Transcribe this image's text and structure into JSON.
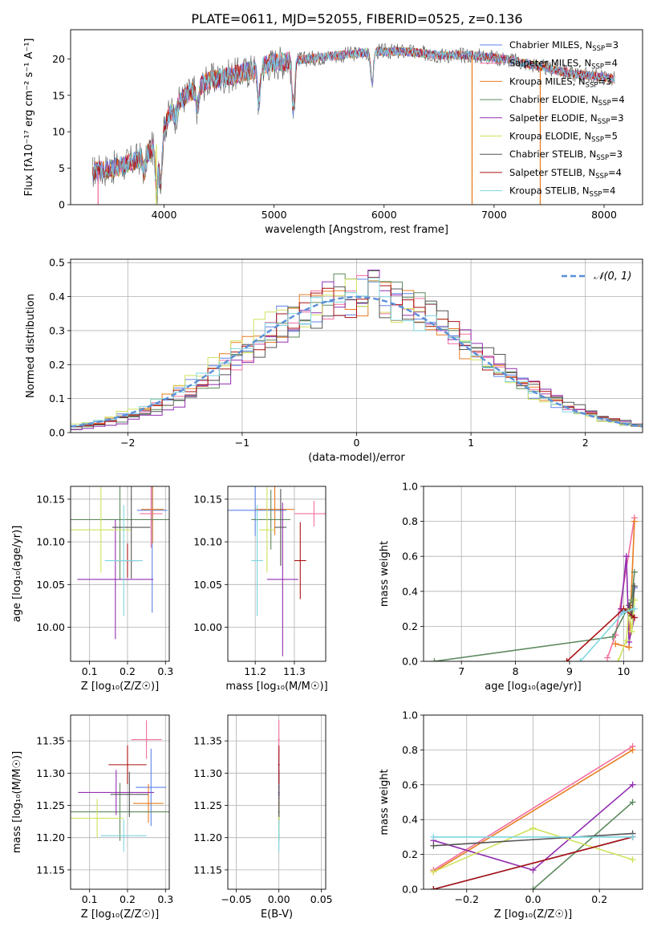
{
  "figure_title": "PLATE=0611, MJD=52055, FIBERID=0525, z=0.136",
  "colors": {
    "Chabrier MILES": "#5d82ea",
    "Salpeter MILES": "#f46fa0",
    "Kroupa MILES": "#e87d22",
    "Chabrier ELODIE": "#5d8a5e",
    "Salpeter ELODIE": "#922fb0",
    "Kroupa ELODIE": "#cfe25d",
    "Chabrier STELIB": "#555555",
    "Salpeter STELIB": "#aa1111",
    "Kroupa STELIB": "#7fd6e0",
    "normal_dashed": "#5b8fd8",
    "grid": "#b0b0b0"
  },
  "chart_data": [
    {
      "id": "spectrum",
      "type": "line",
      "title": "PLATE=0611, MJD=52055, FIBERID=0525, z=0.136",
      "xlabel": "wavelength [Angstrom, rest frame]",
      "ylabel": "Flux [fλ10⁻¹⁷ erg cm⁻² s⁻¹ A⁻¹]",
      "xlim": [
        3150,
        8350
      ],
      "ylim": [
        0,
        24
      ],
      "xticks": [
        4000,
        5000,
        6000,
        7000,
        8000
      ],
      "yticks": [
        0,
        5,
        10,
        15,
        20
      ],
      "grid": false,
      "legend_position": "top-right",
      "legend": [
        {
          "library": "Chabrier MILES",
          "label": "Chabrier MILES, N",
          "sub": "SSP",
          "suffix": "=3"
        },
        {
          "library": "Salpeter MILES",
          "label": "Salpeter MILES, N",
          "sub": "SSP",
          "suffix": "=4"
        },
        {
          "library": "Kroupa MILES",
          "label": "Kroupa MILES, N",
          "sub": "SSP",
          "suffix": "=3"
        },
        {
          "library": "Chabrier ELODIE",
          "label": "Chabrier ELODIE, N",
          "sub": "SSP",
          "suffix": "=4"
        },
        {
          "library": "Salpeter ELODIE",
          "label": "Salpeter ELODIE, N",
          "sub": "SSP",
          "suffix": "=3"
        },
        {
          "library": "Kroupa ELODIE",
          "label": "Kroupa ELODIE, N",
          "sub": "SSP",
          "suffix": "=5"
        },
        {
          "library": "Chabrier STELIB",
          "label": "Chabrier STELIB, N",
          "sub": "SSP",
          "suffix": "=3"
        },
        {
          "library": "Salpeter STELIB",
          "label": "Salpeter STELIB, N",
          "sub": "SSP",
          "suffix": "=4"
        },
        {
          "library": "Kroupa STELIB",
          "label": "Kroupa STELIB, N",
          "sub": "SSP",
          "suffix": "=4"
        }
      ],
      "continuum": {
        "x": [
          3350,
          3450,
          3600,
          3800,
          3950,
          4050,
          4200,
          4400,
          4700,
          5000,
          5300,
          5600,
          5900,
          6200,
          6500,
          6800,
          7100,
          7400,
          7700,
          8000,
          8100
        ],
        "y": [
          4.5,
          4.8,
          5.2,
          6.5,
          8.5,
          12.5,
          15.0,
          17.0,
          18.0,
          19.5,
          20.0,
          20.5,
          21.0,
          21.0,
          20.5,
          20.5,
          20.0,
          19.0,
          18.0,
          17.5,
          17.2
        ]
      },
      "dips": [
        {
          "x": 3820,
          "y": 4.5
        },
        {
          "x": 3933,
          "y": 2.0
        },
        {
          "x": 3968,
          "y": 3.0
        },
        {
          "x": 4101,
          "y": 12.0
        },
        {
          "x": 4304,
          "y": 13.0
        },
        {
          "x": 4861,
          "y": 14.0
        },
        {
          "x": 5175,
          "y": 13.0
        },
        {
          "x": 5890,
          "y": 16.5
        }
      ],
      "spikes": [
        {
          "x": 3400,
          "y": 0.0,
          "library": "Salpeter MILES"
        },
        {
          "x": 3930,
          "y": 0.0,
          "library": "Kroupa ELODIE"
        },
        {
          "x": 6800,
          "y": 0.0,
          "library": "Kroupa MILES"
        },
        {
          "x": 7420,
          "y": 0.0,
          "library": "Kroupa MILES"
        }
      ]
    },
    {
      "id": "residual_histogram",
      "type": "bar",
      "xlabel": "(data-model)/error",
      "ylabel": "Normed distribution",
      "xlim": [
        -2.5,
        2.5
      ],
      "ylim": [
        0,
        0.51
      ],
      "xticks": [
        -2,
        -1,
        0,
        1,
        2
      ],
      "yticks": [
        0.0,
        0.1,
        0.2,
        0.3,
        0.4,
        0.5
      ],
      "grid": true,
      "bin_width": 0.1,
      "bin_start": -2.5,
      "legend": [
        "N(0,1)"
      ],
      "legend_position": "top-right",
      "histograms": [
        {
          "library": "Chabrier MILES",
          "peak_bin": 0.0,
          "sigma": 1.0,
          "jitter": 1
        },
        {
          "library": "Salpeter MILES",
          "peak_bin": 0.1,
          "sigma": 1.0,
          "jitter": 2
        },
        {
          "library": "Kroupa MILES",
          "peak_bin": 0.0,
          "sigma": 1.0,
          "jitter": 3
        },
        {
          "library": "Chabrier ELODIE",
          "peak_bin": 0.2,
          "sigma": 0.95,
          "jitter": 4
        },
        {
          "library": "Salpeter ELODIE",
          "peak_bin": 0.3,
          "sigma": 0.95,
          "jitter": 5
        },
        {
          "library": "Kroupa ELODIE",
          "peak_bin": -0.1,
          "sigma": 1.0,
          "jitter": 6
        },
        {
          "library": "Chabrier STELIB",
          "peak_bin": 0.2,
          "sigma": 1.0,
          "jitter": 7
        },
        {
          "library": "Salpeter STELIB",
          "peak_bin": 0.1,
          "sigma": 1.0,
          "jitter": 8
        },
        {
          "library": "Kroupa STELIB",
          "peak_bin": 0.0,
          "sigma": 1.0,
          "jitter": 9
        }
      ],
      "normal_curve": {
        "mu": 0.0,
        "sigma": 1.0
      }
    },
    {
      "id": "age_vs_Z",
      "type": "scatter",
      "xlabel": "Z [log₁₀(Z/Z☉)]",
      "ylabel": "age [log₁₀(age/yr)]",
      "xlim": [
        0.05,
        0.31
      ],
      "ylim": [
        9.96,
        10.165
      ],
      "xticks": [
        0.1,
        0.2,
        0.3
      ],
      "yticks": [
        10.0,
        10.05,
        10.1,
        10.15
      ],
      "grid": true,
      "points": [
        {
          "library": "Chabrier MILES",
          "x": 0.265,
          "y": 10.137,
          "xerr": 0.04,
          "yerr": 0.12
        },
        {
          "library": "Salpeter MILES",
          "x": 0.262,
          "y": 10.133,
          "xerr": 0.03,
          "yerr": 0.04
        },
        {
          "library": "Kroupa MILES",
          "x": 0.266,
          "y": 10.138,
          "xerr": 0.03,
          "yerr": 0.04
        },
        {
          "library": "Chabrier ELODIE",
          "x": 0.18,
          "y": 10.126,
          "xerr": 0.13,
          "yerr": 0.07
        },
        {
          "library": "Salpeter ELODIE",
          "x": 0.168,
          "y": 10.056,
          "xerr": 0.1,
          "yerr": 0.07
        },
        {
          "library": "Kroupa ELODIE",
          "x": 0.13,
          "y": 10.114,
          "xerr": 0.08,
          "yerr": 0.05
        },
        {
          "library": "Chabrier STELIB",
          "x": 0.21,
          "y": 10.117,
          "xerr": 0.05,
          "yerr": 0.06
        },
        {
          "library": "Salpeter STELIB",
          "x": 0.2,
          "y": 10.078,
          "xerr": 0.03,
          "yerr": 0.02
        },
        {
          "library": "Kroupa STELIB",
          "x": 0.19,
          "y": 10.078,
          "xerr": 0.05,
          "yerr": 0.065
        }
      ]
    },
    {
      "id": "age_vs_mass",
      "type": "scatter",
      "xlabel": "mass [log₁₀(M/M☉)]",
      "ylabel": "",
      "xlim": [
        11.13,
        11.38
      ],
      "ylim": [
        9.96,
        10.165
      ],
      "xticks": [
        11.2,
        11.3
      ],
      "yticks": [
        10.0,
        10.05,
        10.1,
        10.15
      ],
      "grid": true,
      "points": [
        {
          "library": "Chabrier MILES",
          "x": 11.2,
          "y": 10.137,
          "xerr": 0.08,
          "yerr": 0.03
        },
        {
          "library": "Salpeter MILES",
          "x": 11.35,
          "y": 10.133,
          "xerr": 0.05,
          "yerr": 0.015
        },
        {
          "library": "Kroupa MILES",
          "x": 11.25,
          "y": 10.138,
          "xerr": 0.05,
          "yerr": 0.03
        },
        {
          "library": "Chabrier ELODIE",
          "x": 11.24,
          "y": 10.126,
          "xerr": 0.05,
          "yerr": 0.035
        },
        {
          "library": "Salpeter ELODIE",
          "x": 11.27,
          "y": 10.056,
          "xerr": 0.04,
          "yerr": 0.09
        },
        {
          "library": "Kroupa ELODIE",
          "x": 11.23,
          "y": 10.114,
          "xerr": 0.02,
          "yerr": 0.05
        },
        {
          "library": "Chabrier STELIB",
          "x": 11.265,
          "y": 10.117,
          "xerr": 0.015,
          "yerr": 0.045
        },
        {
          "library": "Salpeter STELIB",
          "x": 11.315,
          "y": 10.078,
          "xerr": 0.015,
          "yerr": 0.045
        },
        {
          "library": "Kroupa STELIB",
          "x": 11.205,
          "y": 10.078,
          "xerr": 0.015,
          "yerr": 0.065
        }
      ]
    },
    {
      "id": "mass_weight_vs_age",
      "type": "line",
      "xlabel": "age [log₁₀(age/yr)]",
      "ylabel": "mass weight",
      "xlim": [
        6.3,
        10.35
      ],
      "ylim": [
        0,
        1.0
      ],
      "xticks": [
        7,
        8,
        9,
        10
      ],
      "yticks": [
        0.0,
        0.2,
        0.4,
        0.6,
        0.8,
        1.0
      ],
      "grid": true,
      "series": [
        {
          "library": "Chabrier MILES",
          "x": [
            9.95,
            10.1,
            10.2
          ],
          "y": [
            0.28,
            0.3,
            0.42
          ]
        },
        {
          "library": "Salpeter MILES",
          "x": [
            9.7,
            9.85,
            10.2
          ],
          "y": [
            0.02,
            0.15,
            0.82
          ]
        },
        {
          "library": "Kroupa MILES",
          "x": [
            9.85,
            10.1,
            10.2
          ],
          "y": [
            0.1,
            0.08,
            0.8
          ]
        },
        {
          "library": "Chabrier ELODIE",
          "x": [
            6.5,
            9.8,
            10.15,
            10.2
          ],
          "y": [
            0.0,
            0.14,
            0.35,
            0.51
          ]
        },
        {
          "library": "Salpeter ELODIE",
          "x": [
            9.95,
            10.05,
            10.1,
            10.2
          ],
          "y": [
            0.3,
            0.6,
            0.11,
            0.25
          ]
        },
        {
          "library": "Kroupa ELODIE",
          "x": [
            9.9,
            10.05,
            10.1,
            10.15,
            10.2
          ],
          "y": [
            0.0,
            0.12,
            0.3,
            0.17,
            0.35
          ]
        },
        {
          "library": "Chabrier STELIB",
          "x": [
            10.1,
            10.15,
            10.2
          ],
          "y": [
            0.32,
            0.26,
            0.43
          ]
        },
        {
          "library": "Salpeter STELIB",
          "x": [
            8.95,
            10.0,
            10.2
          ],
          "y": [
            0.0,
            0.3,
            0.25
          ]
        },
        {
          "library": "Kroupa STELIB",
          "x": [
            9.2,
            10.0,
            10.2
          ],
          "y": [
            0.0,
            0.28,
            0.3
          ]
        }
      ]
    },
    {
      "id": "mass_vs_Z",
      "type": "scatter",
      "xlabel": "Z [log₁₀(Z/Z☉)]",
      "ylabel": "mass [log₁₀(M/M☉)]",
      "xlim": [
        0.05,
        0.31
      ],
      "ylim": [
        11.12,
        11.39
      ],
      "xticks": [
        0.1,
        0.2,
        0.3
      ],
      "yticks": [
        11.15,
        11.2,
        11.25,
        11.3,
        11.35
      ],
      "grid": true,
      "points": [
        {
          "library": "Chabrier MILES",
          "x": 0.262,
          "y": 11.278,
          "xerr": 0.04,
          "yerr": 0.06
        },
        {
          "library": "Salpeter MILES",
          "x": 0.25,
          "y": 11.352,
          "xerr": 0.04,
          "yerr": 0.03
        },
        {
          "library": "Kroupa MILES",
          "x": 0.255,
          "y": 11.253,
          "xerr": 0.04,
          "yerr": 0.03
        },
        {
          "library": "Chabrier ELODIE",
          "x": 0.18,
          "y": 11.24,
          "xerr": 0.13,
          "yerr": 0.045
        },
        {
          "library": "Salpeter ELODIE",
          "x": 0.17,
          "y": 11.27,
          "xerr": 0.1,
          "yerr": 0.035
        },
        {
          "library": "Kroupa ELODIE",
          "x": 0.12,
          "y": 11.23,
          "xerr": 0.07,
          "yerr": 0.03
        },
        {
          "library": "Chabrier STELIB",
          "x": 0.205,
          "y": 11.267,
          "xerr": 0.05,
          "yerr": 0.035
        },
        {
          "library": "Salpeter STELIB",
          "x": 0.2,
          "y": 11.313,
          "xerr": 0.05,
          "yerr": 0.03
        },
        {
          "library": "Kroupa STELIB",
          "x": 0.19,
          "y": 11.203,
          "xerr": 0.06,
          "yerr": 0.025
        }
      ]
    },
    {
      "id": "mass_vs_EBV",
      "type": "scatter",
      "xlabel": "E(B-V)",
      "ylabel": "",
      "xlim": [
        -0.06,
        0.055
      ],
      "ylim": [
        11.12,
        11.39
      ],
      "xticks": [
        -0.05,
        0.0,
        0.05
      ],
      "yticks": [
        11.15,
        11.2,
        11.25,
        11.3,
        11.35
      ],
      "grid": true,
      "points": [
        {
          "library": "Chabrier MILES",
          "x": 0.0,
          "y": 11.278,
          "xerr": 0.001,
          "yerr": 0.06
        },
        {
          "library": "Salpeter MILES",
          "x": 0.0,
          "y": 11.352,
          "xerr": 0.001,
          "yerr": 0.03
        },
        {
          "library": "Kroupa MILES",
          "x": 0.0,
          "y": 11.253,
          "xerr": 0.001,
          "yerr": 0.03
        },
        {
          "library": "Chabrier ELODIE",
          "x": 0.0,
          "y": 11.24,
          "xerr": 0.001,
          "yerr": 0.045
        },
        {
          "library": "Salpeter ELODIE",
          "x": 0.0,
          "y": 11.27,
          "xerr": 0.001,
          "yerr": 0.035
        },
        {
          "library": "Kroupa ELODIE",
          "x": 0.0,
          "y": 11.23,
          "xerr": 0.001,
          "yerr": 0.03
        },
        {
          "library": "Chabrier STELIB",
          "x": 0.0,
          "y": 11.267,
          "xerr": 0.001,
          "yerr": 0.035
        },
        {
          "library": "Salpeter STELIB",
          "x": 0.0,
          "y": 11.313,
          "xerr": 0.001,
          "yerr": 0.03
        },
        {
          "library": "Kroupa STELIB",
          "x": 0.0,
          "y": 11.203,
          "xerr": 0.001,
          "yerr": 0.025
        }
      ]
    },
    {
      "id": "mass_weight_vs_Z",
      "type": "line",
      "xlabel": "Z [log₁₀(Z/Z☉)]",
      "ylabel": "mass weight",
      "xlim": [
        -0.33,
        0.33
      ],
      "ylim": [
        0,
        1.0
      ],
      "xticks": [
        -0.2,
        0.0,
        0.2
      ],
      "yticks": [
        0.0,
        0.2,
        0.4,
        0.6,
        0.8,
        1.0
      ],
      "grid": true,
      "series": [
        {
          "library": "Chabrier MILES",
          "x": [
            -0.3,
            0.3
          ],
          "y": [
            0.0,
            0.3
          ]
        },
        {
          "library": "Salpeter MILES",
          "x": [
            -0.3,
            0.3
          ],
          "y": [
            0.11,
            0.82
          ]
        },
        {
          "library": "Kroupa MILES",
          "x": [
            -0.3,
            0.3
          ],
          "y": [
            0.1,
            0.8
          ]
        },
        {
          "library": "Chabrier ELODIE",
          "x": [
            0.0,
            0.3
          ],
          "y": [
            0.0,
            0.5
          ]
        },
        {
          "library": "Salpeter ELODIE",
          "x": [
            -0.3,
            0.0,
            0.3
          ],
          "y": [
            0.28,
            0.11,
            0.6
          ]
        },
        {
          "library": "Kroupa ELODIE",
          "x": [
            -0.3,
            0.0,
            0.3
          ],
          "y": [
            0.1,
            0.35,
            0.17
          ]
        },
        {
          "library": "Chabrier STELIB",
          "x": [
            -0.3,
            0.3
          ],
          "y": [
            0.25,
            0.32
          ]
        },
        {
          "library": "Salpeter STELIB",
          "x": [
            -0.3,
            0.3
          ],
          "y": [
            0.0,
            0.3
          ]
        },
        {
          "library": "Kroupa STELIB",
          "x": [
            -0.3,
            0.3
          ],
          "y": [
            0.3,
            0.3
          ]
        }
      ]
    }
  ]
}
